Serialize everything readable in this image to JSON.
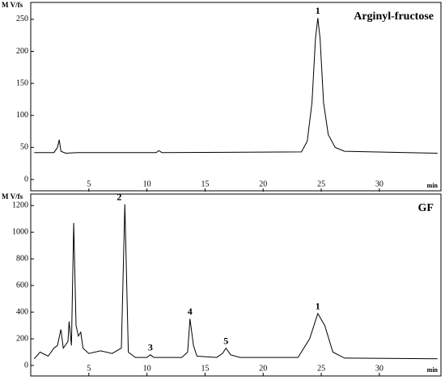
{
  "chart_data": [
    {
      "type": "line",
      "title": "Arginyl-fructose",
      "y_label": "M V/fs",
      "x_label": "min",
      "x": [
        0.3,
        2,
        2.3,
        2.45,
        2.6,
        3,
        4,
        10.8,
        11,
        11.3,
        23.3,
        23.8,
        24.2,
        24.5,
        24.7,
        24.9,
        25.2,
        25.6,
        26.2,
        27,
        35
      ],
      "series": [
        {
          "color": "#000000",
          "values": [
            42,
            42,
            50,
            62,
            44,
            41,
            42,
            42,
            45,
            42,
            43,
            60,
            120,
            220,
            252,
            220,
            120,
            70,
            50,
            44,
            41
          ]
        }
      ],
      "xlim": [
        0,
        35.3
      ],
      "ylim": [
        0,
        265
      ],
      "xticks": [
        5,
        10,
        15,
        20,
        25,
        30
      ],
      "yticks": [
        0,
        50,
        100,
        150,
        200,
        250
      ],
      "annotations": [
        {
          "text": "1",
          "x": 24.7,
          "y": 252
        }
      ]
    },
    {
      "type": "line",
      "title": "GF",
      "y_label": "M V/fs",
      "x_label": "min",
      "x": [
        0.3,
        0.8,
        1.5,
        2,
        2.3,
        2.6,
        2.8,
        3.2,
        3.3,
        3.5,
        3.7,
        3.9,
        4.1,
        4.3,
        4.5,
        5,
        6,
        7,
        7.8,
        8.1,
        8.4,
        9,
        10,
        10.3,
        10.6,
        13,
        13.5,
        13.7,
        14,
        14.3,
        16,
        16.5,
        16.8,
        17.2,
        18,
        23,
        24,
        24.7,
        25.3,
        26,
        27,
        35
      ],
      "series": [
        {
          "color": "#000000",
          "values": [
            50,
            100,
            70,
            130,
            150,
            270,
            130,
            180,
            330,
            150,
            1070,
            300,
            220,
            250,
            130,
            90,
            110,
            90,
            130,
            1210,
            100,
            60,
            60,
            80,
            60,
            60,
            100,
            350,
            150,
            70,
            60,
            90,
            130,
            80,
            60,
            60,
            200,
            390,
            300,
            100,
            55,
            50
          ]
        }
      ],
      "xlim": [
        0,
        35.3
      ],
      "ylim": [
        0,
        1250
      ],
      "xticks": [
        5,
        10,
        15,
        20,
        25,
        30
      ],
      "yticks": [
        0,
        200,
        400,
        600,
        800,
        1000,
        1200
      ],
      "annotations": [
        {
          "text": "2",
          "x": 8.1,
          "y": 1210
        },
        {
          "text": "3",
          "x": 10.3,
          "y": 80
        },
        {
          "text": "4",
          "x": 13.7,
          "y": 350
        },
        {
          "text": "5",
          "x": 16.8,
          "y": 130
        },
        {
          "text": "1",
          "x": 24.7,
          "y": 390
        }
      ]
    }
  ]
}
